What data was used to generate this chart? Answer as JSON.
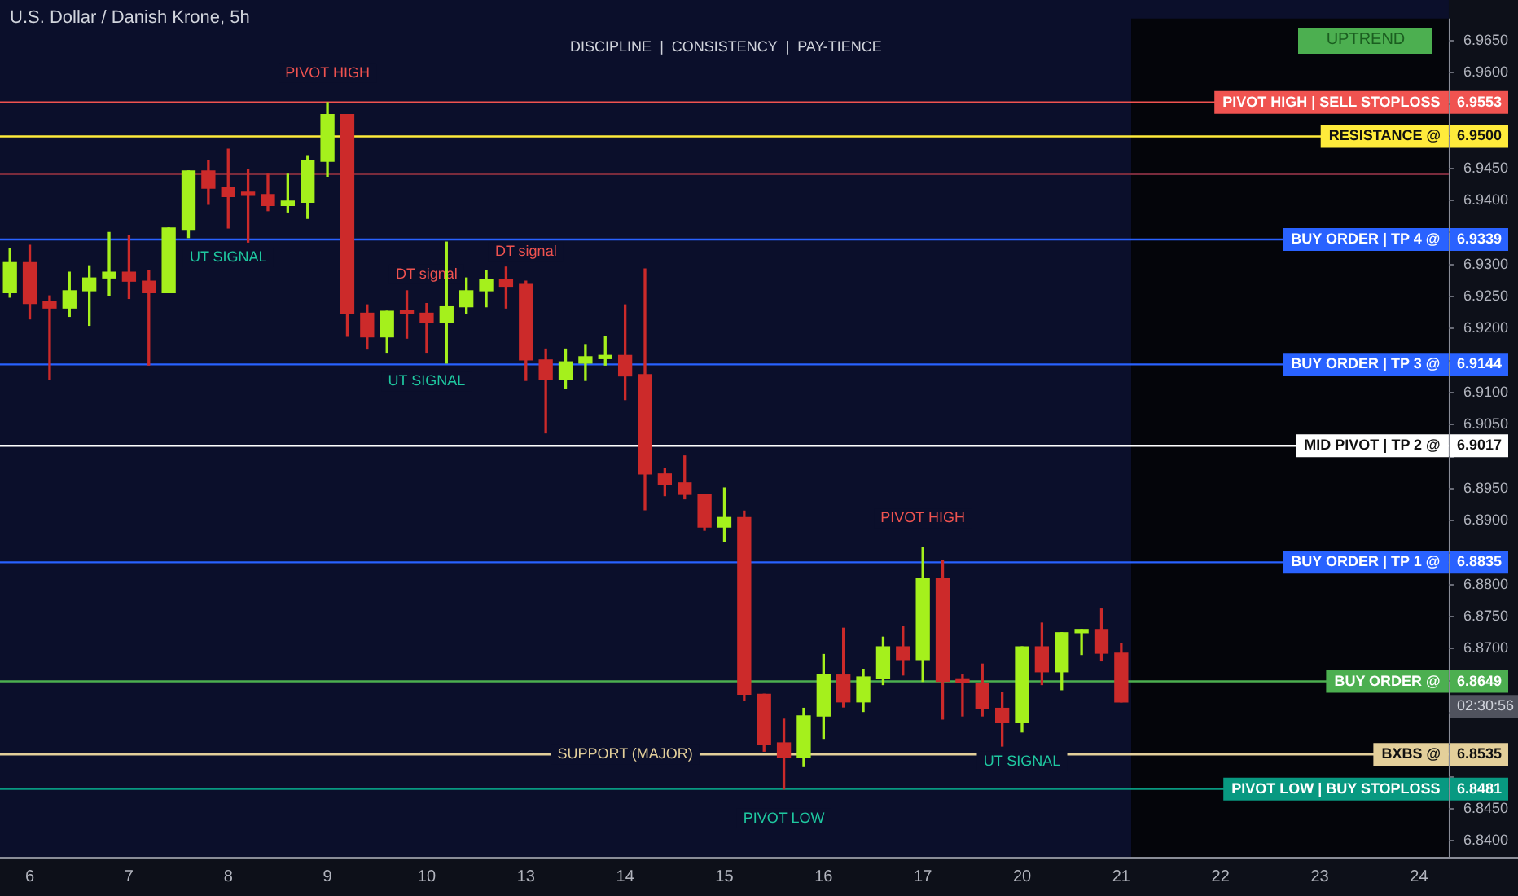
{
  "chart_data": {
    "type": "candlestick",
    "title": "U.S. Dollar / Danish Krone, 5h",
    "subtitle": "DISCIPLINE  |  CONSISTENCY  |  PAY-TIENCE",
    "categories": [
      null,
      "6",
      null,
      null,
      null,
      null,
      "7",
      null,
      null,
      null,
      null,
      "8",
      null,
      null,
      null,
      null,
      "9",
      null,
      null,
      null,
      null,
      "10",
      null,
      null,
      null,
      null,
      "13",
      null,
      null,
      null,
      null,
      "14",
      null,
      null,
      null,
      null,
      "15",
      null,
      null,
      null,
      null,
      "16",
      null,
      null,
      null,
      null,
      "17",
      null,
      null,
      null,
      null,
      "20",
      null,
      null,
      null,
      null,
      "21",
      null,
      null,
      null,
      null,
      "22",
      null,
      null,
      null,
      null,
      "23",
      null,
      null,
      null,
      null,
      "24",
      null
    ],
    "ohlc": [
      [
        6.9256,
        6.9325,
        6.9249,
        6.9303
      ],
      [
        6.9303,
        6.933,
        6.9215,
        6.9239
      ],
      [
        6.9242,
        6.9251,
        6.9121,
        6.9232
      ],
      [
        6.9232,
        6.9288,
        6.9219,
        6.9259
      ],
      [
        6.9259,
        6.9298,
        6.9205,
        6.9279
      ],
      [
        6.9279,
        6.935,
        6.9251,
        6.9288
      ],
      [
        6.9288,
        6.9345,
        6.9247,
        6.9274
      ],
      [
        6.9274,
        6.9291,
        6.9143,
        6.9256
      ],
      [
        6.9256,
        6.9357,
        6.9256,
        6.9357
      ],
      [
        6.9355,
        6.9446,
        6.9342,
        6.9446
      ],
      [
        6.9446,
        6.9463,
        6.9394,
        6.9419
      ],
      [
        6.9421,
        6.948,
        6.9357,
        6.9406
      ],
      [
        6.9409,
        6.9448,
        6.9335,
        6.9408
      ],
      [
        6.9409,
        6.9441,
        6.9384,
        6.9392
      ],
      [
        6.9392,
        6.9441,
        6.9382,
        6.9399
      ],
      [
        6.9397,
        6.947,
        6.9372,
        6.9463
      ],
      [
        6.9461,
        6.9553,
        6.9438,
        6.9534
      ],
      [
        6.9534,
        6.9534,
        6.9188,
        6.9224
      ],
      [
        6.9224,
        6.9237,
        6.9168,
        6.9187
      ],
      [
        6.9187,
        6.9227,
        6.9163,
        6.9227
      ],
      [
        6.9224,
        6.9259,
        6.9185,
        6.9223
      ],
      [
        6.9224,
        6.9239,
        6.9163,
        6.921
      ],
      [
        6.921,
        6.9335,
        6.9146,
        6.9234
      ],
      [
        6.9234,
        6.9279,
        6.9224,
        6.9259
      ],
      [
        6.9259,
        6.9291,
        6.9234,
        6.9276
      ],
      [
        6.9276,
        6.9296,
        6.9232,
        6.9266
      ],
      [
        6.9269,
        6.9274,
        6.9119,
        6.9151
      ],
      [
        6.9151,
        6.9168,
        6.9037,
        6.9121
      ],
      [
        6.9121,
        6.9168,
        6.9106,
        6.9148
      ],
      [
        6.9146,
        6.9175,
        6.9119,
        6.9156
      ],
      [
        6.9153,
        6.9187,
        6.9143,
        6.9158
      ],
      [
        6.9158,
        6.9237,
        6.9089,
        6.9126
      ],
      [
        6.9128,
        6.9293,
        6.8917,
        6.8973
      ],
      [
        6.8973,
        6.8981,
        6.8939,
        6.8956
      ],
      [
        6.8959,
        6.9001,
        6.8934,
        6.8941
      ],
      [
        6.8941,
        6.8941,
        6.8885,
        6.889
      ],
      [
        6.889,
        6.8951,
        6.8868,
        6.8905
      ],
      [
        6.8905,
        6.8915,
        6.8619,
        6.8629
      ],
      [
        6.8629,
        6.8629,
        6.854,
        6.855
      ],
      [
        6.8553,
        6.859,
        6.8481,
        6.8531
      ],
      [
        6.8531,
        6.8607,
        6.8516,
        6.8595
      ],
      [
        6.8595,
        6.8691,
        6.856,
        6.8659
      ],
      [
        6.8659,
        6.8732,
        6.8609,
        6.8617
      ],
      [
        6.8617,
        6.8668,
        6.8602,
        6.8656
      ],
      [
        6.8654,
        6.8718,
        6.8644,
        6.8703
      ],
      [
        6.8703,
        6.8735,
        6.8659,
        6.8683
      ],
      [
        6.8683,
        6.8858,
        6.8649,
        6.8809
      ],
      [
        6.8809,
        6.8838,
        6.859,
        6.8649
      ],
      [
        6.8649,
        6.8659,
        6.8595,
        6.8648
      ],
      [
        6.8646,
        6.8676,
        6.8595,
        6.8607
      ],
      [
        6.8607,
        6.8632,
        6.8548,
        6.8585
      ],
      [
        6.8585,
        6.8703,
        6.857,
        6.8703
      ],
      [
        6.8703,
        6.874,
        6.8644,
        6.8664
      ],
      [
        6.8664,
        6.8725,
        6.8636,
        6.8725
      ],
      [
        6.8725,
        6.873,
        6.8691,
        6.873
      ],
      [
        6.873,
        6.8762,
        6.8681,
        6.8693
      ],
      [
        6.8693,
        6.8708,
        6.8617,
        6.8617
      ],
      null,
      null,
      null,
      null,
      null,
      null,
      null,
      null,
      null,
      null,
      null,
      null,
      null,
      null,
      null,
      null
    ],
    "colors": [
      "#a5f01c",
      "#cc2a2a",
      "#cc2a2a",
      "#a5f01c",
      "#a5f01c",
      "#a5f01c",
      "#cc2a2a",
      "#cc2a2a",
      "#a5f01c",
      "#a5f01c",
      "#cc2a2a",
      "#cc2a2a",
      "#cc2a2a",
      "#cc2a2a",
      "#a5f01c",
      "#a5f01c",
      "#a5f01c",
      "#cc2a2a",
      "#cc2a2a",
      "#a5f01c",
      "#cc2a2a",
      "#cc2a2a",
      "#a5f01c",
      "#a5f01c",
      "#a5f01c",
      "#cc2a2a",
      "#cc2a2a",
      "#cc2a2a",
      "#a5f01c",
      "#a5f01c",
      "#a5f01c",
      "#cc2a2a",
      "#cc2a2a",
      "#cc2a2a",
      "#cc2a2a",
      "#cc2a2a",
      "#a5f01c",
      "#cc2a2a",
      "#cc2a2a",
      "#cc2a2a",
      "#a5f01c",
      "#a5f01c",
      "#cc2a2a",
      "#a5f01c",
      "#a5f01c",
      "#cc2a2a",
      "#a5f01c",
      "#cc2a2a",
      "#cc2a2a",
      "#cc2a2a",
      "#cc2a2a",
      "#a5f01c",
      "#cc2a2a",
      "#a5f01c",
      "#a5f01c",
      "#cc2a2a",
      "#cc2a2a",
      null,
      null,
      null,
      null,
      null,
      null,
      null,
      null,
      null,
      null,
      null,
      null,
      null,
      null,
      null,
      null
    ],
    "ylim": [
      6.8375,
      6.9684
    ],
    "yticks": [
      {
        "value": 6.84,
        "label": "6.8400"
      },
      {
        "value": 6.845,
        "label": "6.8450"
      },
      {
        "value": 6.85,
        "label": null
      },
      {
        "value": 6.855,
        "label": null
      },
      {
        "value": 6.86,
        "label": null
      },
      {
        "value": 6.865,
        "label": null
      },
      {
        "value": 6.87,
        "label": "6.8700"
      },
      {
        "value": 6.875,
        "label": "6.8750"
      },
      {
        "value": 6.88,
        "label": "6.8800"
      },
      {
        "value": 6.885,
        "label": null
      },
      {
        "value": 6.89,
        "label": "6.8900"
      },
      {
        "value": 6.895,
        "label": "6.8950"
      },
      {
        "value": 6.9,
        "label": null
      },
      {
        "value": 6.905,
        "label": "6.9050"
      },
      {
        "value": 6.91,
        "label": "6.9100"
      },
      {
        "value": 6.915,
        "label": null
      },
      {
        "value": 6.92,
        "label": "6.9200"
      },
      {
        "value": 6.925,
        "label": "6.9250"
      },
      {
        "value": 6.93,
        "label": "6.9300"
      },
      {
        "value": 6.935,
        "label": null
      },
      {
        "value": 6.94,
        "label": "6.9400"
      },
      {
        "value": 6.945,
        "label": "6.9450"
      },
      {
        "value": 6.95,
        "label": null
      },
      {
        "value": 6.955,
        "label": null
      },
      {
        "value": 6.96,
        "label": "6.9600"
      },
      {
        "value": 6.965,
        "label": "6.9650"
      }
    ],
    "ref_lines": [
      {
        "axis": "y",
        "value": 6.9553,
        "label": "PIVOT HIGH | SELL STOPLOSS",
        "color": "#f05350"
      },
      {
        "axis": "y",
        "value": 6.95,
        "label": "RESISTANCE @",
        "color": "#ffeb3b"
      },
      {
        "axis": "y",
        "value": 6.9441,
        "color": "#7a2b3c"
      },
      {
        "axis": "y",
        "value": 6.9339,
        "label": "BUY ORDER | TP 4 @",
        "color": "#2962ff"
      },
      {
        "axis": "y",
        "value": 6.9144,
        "label": "BUY ORDER | TP 3 @",
        "color": "#2962ff"
      },
      {
        "axis": "y",
        "value": 6.9017,
        "label": "MID PIVOT | TP 2 @",
        "color": "#ffffff"
      },
      {
        "axis": "y",
        "value": 6.8835,
        "label": "BUY ORDER | TP 1 @",
        "color": "#2962ff"
      },
      {
        "axis": "y",
        "value": 6.8649,
        "label": "BUY ORDER @",
        "color": "#4caf50"
      },
      {
        "axis": "y",
        "value": 6.8535,
        "label": "BXBS @",
        "color": "#e3cf9a"
      },
      {
        "axis": "y",
        "value": 6.8481,
        "label": "PIVOT LOW | BUY STOPLOSS",
        "color": "#089981"
      }
    ],
    "annotations": [
      "UPTREND",
      {
        "text": "PIVOT HIGH",
        "x": "9",
        "y": 6.9553
      },
      {
        "text": "UT SIGNAL",
        "x": "8",
        "y": 6.9357
      },
      {
        "text": "DT signal",
        "x": "10",
        "y": 6.9239
      },
      {
        "text": "UT SIGNAL",
        "x": "10",
        "y": 6.9163
      },
      {
        "text": "DT signal",
        "x": "13",
        "y": 6.9274
      },
      {
        "text": "PIVOT HIGH",
        "x": "17",
        "y": 6.8858
      },
      {
        "text": "SUPPORT (MAJOR)",
        "x": "14",
        "y": 6.8535
      },
      {
        "text": "UT SIGNAL",
        "x": "20",
        "y": 6.857
      },
      {
        "text": "PIVOT LOW",
        "x": "16",
        "y": 6.8481
      },
      {
        "text": "02:30:56",
        "y": 6.861
      },
      {
        "text": "6.9553",
        "y": 6.9553
      },
      {
        "text": "6.9500",
        "y": 6.95
      },
      {
        "text": "6.9339",
        "y": 6.9339
      },
      {
        "text": "6.9144",
        "y": 6.9144
      },
      {
        "text": "6.9017",
        "y": 6.9017
      },
      {
        "text": "6.8835",
        "y": 6.8835
      },
      {
        "text": "6.8649",
        "y": 6.8649
      },
      {
        "text": "6.8535",
        "y": 6.8535
      },
      {
        "text": "6.8481",
        "y": 6.8481
      }
    ],
    "grid": false,
    "legend": false
  }
}
